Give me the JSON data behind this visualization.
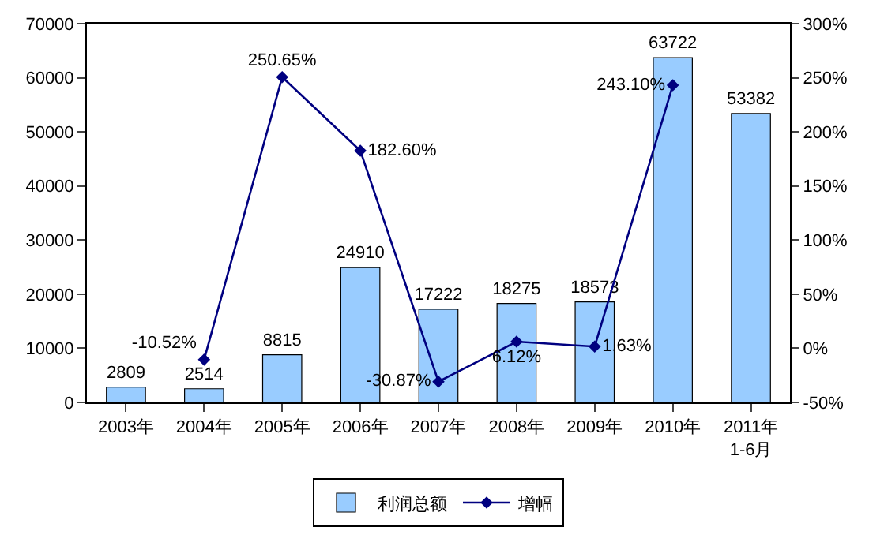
{
  "chart_data": {
    "type": "bar",
    "categories": [
      "2003年",
      "2004年",
      "2005年",
      "2006年",
      "2007年",
      "2008年",
      "2009年",
      "2010年",
      "2011年\n1-6月"
    ],
    "series": [
      {
        "name": "利润总额",
        "color": "#99ccff",
        "values": [
          2809,
          2514,
          8815,
          24910,
          17222,
          18275,
          18573,
          63722,
          53382
        ],
        "value_labels": [
          "2809",
          "2514",
          "8815",
          "24910",
          "17222",
          "18275",
          "18573",
          "63722",
          "53382"
        ]
      },
      {
        "name": "增幅",
        "type": "line",
        "axis": "y2",
        "color": "#000080",
        "marker": "diamond",
        "values": [
          null,
          -10.52,
          250.65,
          182.6,
          -30.87,
          6.12,
          1.63,
          243.1,
          null
        ],
        "value_labels": [
          null,
          "-10.52%",
          "250.65%",
          "182.60%",
          "-30.87%",
          "6.12%",
          "1.63%",
          "243.10%",
          null
        ]
      }
    ],
    "ylim": [
      0,
      70000
    ],
    "yticks": [
      0,
      10000,
      20000,
      30000,
      40000,
      50000,
      60000,
      70000
    ],
    "y2lim": [
      -50,
      300
    ],
    "y2ticks": [
      {
        "value": -50,
        "label": "-50%"
      },
      {
        "value": 0,
        "label": "0%"
      },
      {
        "value": 50,
        "label": "50%"
      },
      {
        "value": 100,
        "label": "100%"
      },
      {
        "value": 150,
        "label": "150%"
      },
      {
        "value": 200,
        "label": "200%"
      },
      {
        "value": 250,
        "label": "250%"
      },
      {
        "value": 300,
        "label": "300%"
      }
    ],
    "grid": false,
    "legend": "bottom"
  }
}
